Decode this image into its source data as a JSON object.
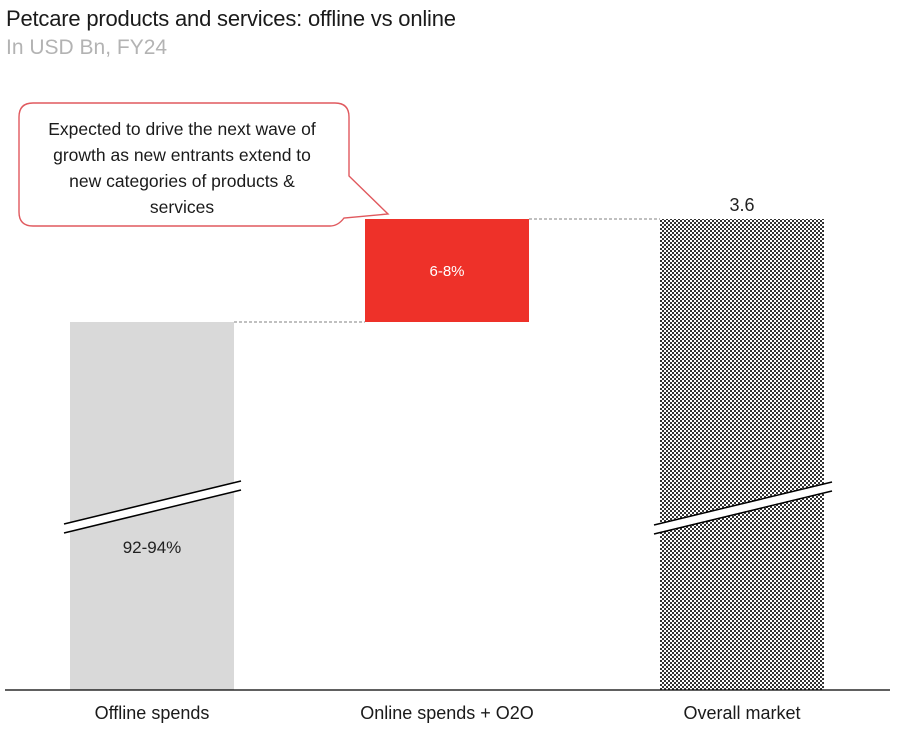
{
  "header": {
    "title": "Petcare products and services: offline vs online",
    "subtitle": "In USD Bn, FY24"
  },
  "colors": {
    "offline": "#d9d9d9",
    "online": "#ee3129",
    "overall_pattern_dark": "#333333",
    "overall_pattern_light": "#ffffff",
    "connector": "#808080",
    "callout_border": "#e0595e",
    "axis": "#000000"
  },
  "chart_data": {
    "type": "bar",
    "subtype": "waterfall",
    "categories": [
      "Offline spends",
      "Online spends + O2O",
      "Overall market"
    ],
    "bars": [
      {
        "category": "Offline spends",
        "role": "base",
        "label": "92-94%",
        "axis_break": true
      },
      {
        "category": "Online spends + O2O",
        "role": "increment",
        "label": "6-8%",
        "axis_break": false
      },
      {
        "category": "Overall market",
        "role": "total",
        "value": 3.6,
        "label": "3.6",
        "axis_break": true
      }
    ],
    "callout": {
      "lines": [
        "Expected to drive the next wave of",
        "growth as new entrants extend to",
        "new categories of products &",
        "services"
      ],
      "target_category": "Online spends + O2O"
    },
    "xlabel": "",
    "ylabel": "",
    "grid": false,
    "legend": "none"
  }
}
